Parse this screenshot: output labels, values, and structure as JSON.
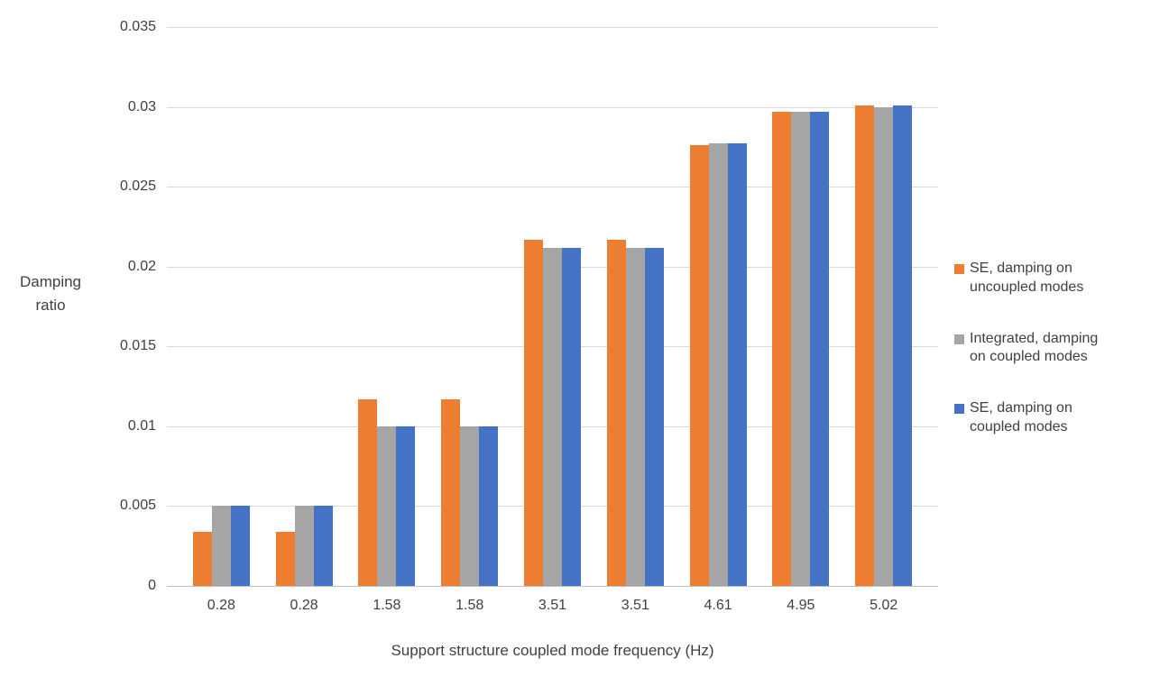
{
  "chart_data": {
    "type": "bar",
    "title": "",
    "categories": [
      "0.28",
      "0.28",
      "1.58",
      "1.58",
      "3.51",
      "3.51",
      "4.61",
      "4.95",
      "5.02"
    ],
    "series": [
      {
        "name": "SE, damping on uncoupled modes",
        "color": "#ED7D31",
        "values": [
          0.0034,
          0.0034,
          0.0117,
          0.0117,
          0.0217,
          0.0217,
          0.0276,
          0.0297,
          0.0301
        ]
      },
      {
        "name": "Integrated, damping on coupled modes",
        "color": "#A5A5A5",
        "values": [
          0.005,
          0.005,
          0.01,
          0.01,
          0.0212,
          0.0212,
          0.0277,
          0.0297,
          0.03
        ]
      },
      {
        "name": "SE, damping on coupled modes",
        "color": "#4472C4",
        "values": [
          0.005,
          0.005,
          0.01,
          0.01,
          0.0212,
          0.0212,
          0.0277,
          0.0297,
          0.0301
        ]
      }
    ],
    "ylabel": "Damping ratio",
    "ylabel_lines": [
      "Damping",
      "ratio"
    ],
    "xlabel": "Support structure coupled mode frequency (Hz)",
    "ymin": 0,
    "ymax": 0.035,
    "ytick_labels": [
      "0",
      "0.005",
      "0.01",
      "0.015",
      "0.02",
      "0.025",
      "0.03",
      "0.035"
    ],
    "grid": true,
    "legend_position": "right",
    "colors": {
      "gridline": "#D9D9D9",
      "axis_line": "#BFBFBF",
      "text": "#404040"
    }
  }
}
